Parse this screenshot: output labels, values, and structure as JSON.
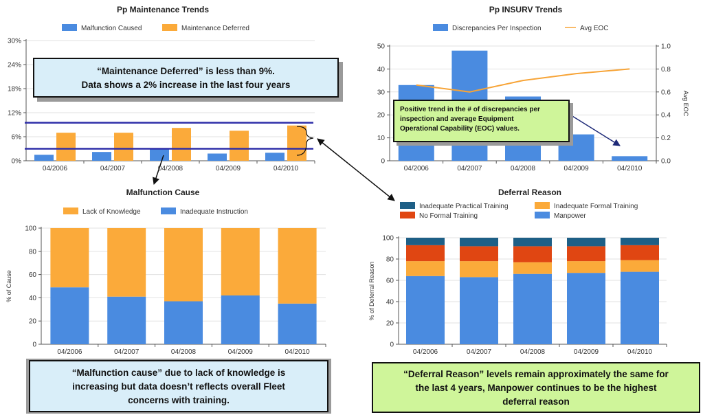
{
  "colors": {
    "blue": "#4A8BE0",
    "orange": "#FBAA3A",
    "red": "#E04612",
    "teal": "#1E5F86",
    "line_orange": "#F7A437",
    "navy": "#2E2EA8",
    "callout_blue_bg": "#D9EEF9",
    "callout_green_bg": "#CFF59A"
  },
  "chart_data": [
    {
      "id": "maintenance",
      "type": "bar",
      "title": "Pp Maintenance Trends",
      "categories": [
        "04/2006",
        "04/2007",
        "04/2008",
        "04/2009",
        "04/2010"
      ],
      "series": [
        {
          "name": "Malfunction Caused",
          "color": "#4A8BE0",
          "values": [
            1.5,
            2.2,
            3.0,
            1.8,
            2.0
          ]
        },
        {
          "name": "Maintenance Deferred",
          "color": "#FBAA3A",
          "values": [
            7.0,
            7.0,
            8.2,
            7.5,
            8.8
          ]
        }
      ],
      "yticks": [
        "0%",
        "6%",
        "12%",
        "18%",
        "24%",
        "30%"
      ],
      "ylim": [
        0,
        30
      ],
      "reference_lines": [
        3,
        9.5
      ],
      "grid": true,
      "legend": "top"
    },
    {
      "id": "insurv",
      "type": "bar",
      "title": "Pp INSURV Trends",
      "categories": [
        "04/2006",
        "04/2007",
        "04/2008",
        "04/2009",
        "04/2010"
      ],
      "series": [
        {
          "name": "Discrepancies Per Inspection",
          "color": "#4A8BE0",
          "values": [
            33,
            48,
            28,
            11.5,
            2
          ]
        },
        {
          "name": "Avg EOC",
          "color": "#F7A437",
          "type": "line",
          "axis": "right",
          "values": [
            0.66,
            0.6,
            0.7,
            0.76,
            0.8
          ]
        }
      ],
      "yticks": [
        "0",
        "10",
        "20",
        "30",
        "40",
        "50"
      ],
      "ylim": [
        0,
        50
      ],
      "y2ticks": [
        "0.0",
        "0.2",
        "0.4",
        "0.6",
        "0.8",
        "1.0"
      ],
      "y2lim": [
        0,
        1
      ],
      "y2label": "Avg EOC",
      "grid": true,
      "legend": "top"
    },
    {
      "id": "malfunction",
      "type": "bar",
      "stacked": true,
      "title": "Malfunction Cause",
      "categories": [
        "04/2006",
        "04/2007",
        "04/2008",
        "04/2009",
        "04/2010"
      ],
      "series": [
        {
          "name": "Inadequate Instruction",
          "color": "#4A8BE0",
          "values": [
            49,
            41,
            37,
            42,
            35
          ]
        },
        {
          "name": "Lack of Knowledge",
          "color": "#FBAA3A",
          "values": [
            51,
            59,
            63,
            58,
            65
          ]
        }
      ],
      "legend_order": [
        "Lack of Knowledge",
        "Inadequate Instruction"
      ],
      "yticks": [
        "0",
        "20",
        "40",
        "60",
        "80",
        "100"
      ],
      "ylim": [
        0,
        100
      ],
      "ylabel": "% of Cause",
      "grid": true,
      "legend": "top"
    },
    {
      "id": "deferral",
      "type": "bar",
      "stacked": true,
      "title": "Deferral Reason",
      "categories": [
        "04/2006",
        "04/2007",
        "04/2008",
        "04/2009",
        "04/2010"
      ],
      "series": [
        {
          "name": "Manpower",
          "color": "#4A8BE0",
          "values": [
            64,
            63,
            66,
            67,
            68
          ]
        },
        {
          "name": "Inadequate Formal Training",
          "color": "#FBAA3A",
          "values": [
            14,
            15,
            11,
            11,
            11
          ]
        },
        {
          "name": "No Formal Training",
          "color": "#E04612",
          "values": [
            15,
            14,
            15,
            14,
            14
          ]
        },
        {
          "name": "Inadequate Practical Training",
          "color": "#1E5F86",
          "values": [
            7,
            8,
            8,
            8,
            7
          ]
        }
      ],
      "legend_order": [
        "Inadequate Practical Training",
        "Inadequate Formal Training",
        "No Formal Training",
        "Manpower"
      ],
      "yticks": [
        "0",
        "20",
        "40",
        "60",
        "80",
        "100"
      ],
      "ylim": [
        0,
        100
      ],
      "ylabel": "% of Deferral Reason",
      "grid": true,
      "legend": "top"
    }
  ],
  "callouts": {
    "maintenance": [
      "“Maintenance Deferred” is less than 9%.",
      "Data shows a 2% increase in the last four years"
    ],
    "insurv": [
      "Positive trend in the # of discrepancies per",
      "inspection and average Equipment",
      "Operational Capability (EOC) values."
    ],
    "malfunction": [
      "“Malfunction cause” due to lack of knowledge is",
      "increasing but data doesn’t reflects overall Fleet",
      "concerns with training."
    ],
    "deferral": [
      "“Deferral Reason” levels remain approximately the same for",
      "the last 4 years,  Manpower continues to be the highest",
      "deferral reason"
    ]
  }
}
